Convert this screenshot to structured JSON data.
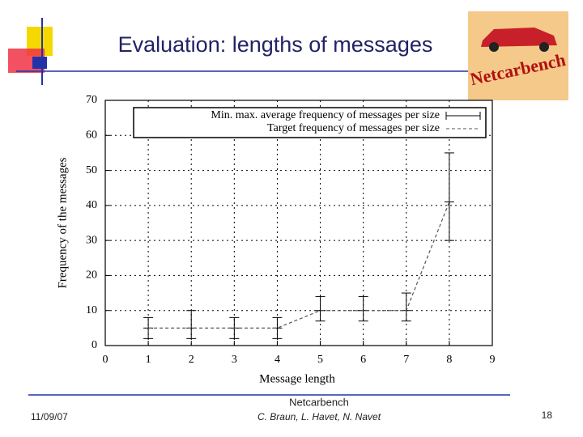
{
  "slide": {
    "title": "Evaluation: lengths of messages",
    "logo_text": "Netcarbench",
    "date": "11/09/07",
    "footer_title": "Netcarbench",
    "authors": "C. Braun, L. Havet, N. Navet",
    "page": "18"
  },
  "chart_data": {
    "type": "errorbar",
    "x_label": "Message length",
    "y_label": "Frequency of the messages",
    "x": [
      1,
      2,
      3,
      4,
      5,
      6,
      7,
      8
    ],
    "series": [
      {
        "name": "Min. max. average frequency of messages per size",
        "color": "#000000",
        "values": [
          5,
          5,
          5,
          5,
          10,
          10,
          10,
          41
        ],
        "min": [
          2,
          2,
          2,
          2,
          7,
          7,
          7,
          30
        ],
        "max": [
          8,
          10,
          8,
          8,
          14,
          14,
          15,
          55
        ]
      },
      {
        "name": "Target frequency of messages per size",
        "color": "#555555",
        "dashed": true,
        "values": [
          5,
          5,
          5,
          5,
          10,
          10,
          10,
          41
        ]
      }
    ],
    "xlim": [
      0,
      9
    ],
    "xticks": [
      0,
      1,
      2,
      3,
      4,
      5,
      6,
      7,
      8,
      9
    ],
    "ylim": [
      0,
      70
    ],
    "yticks": [
      0,
      10,
      20,
      30,
      40,
      50,
      60,
      70
    ],
    "grid": true,
    "legend": "top"
  }
}
